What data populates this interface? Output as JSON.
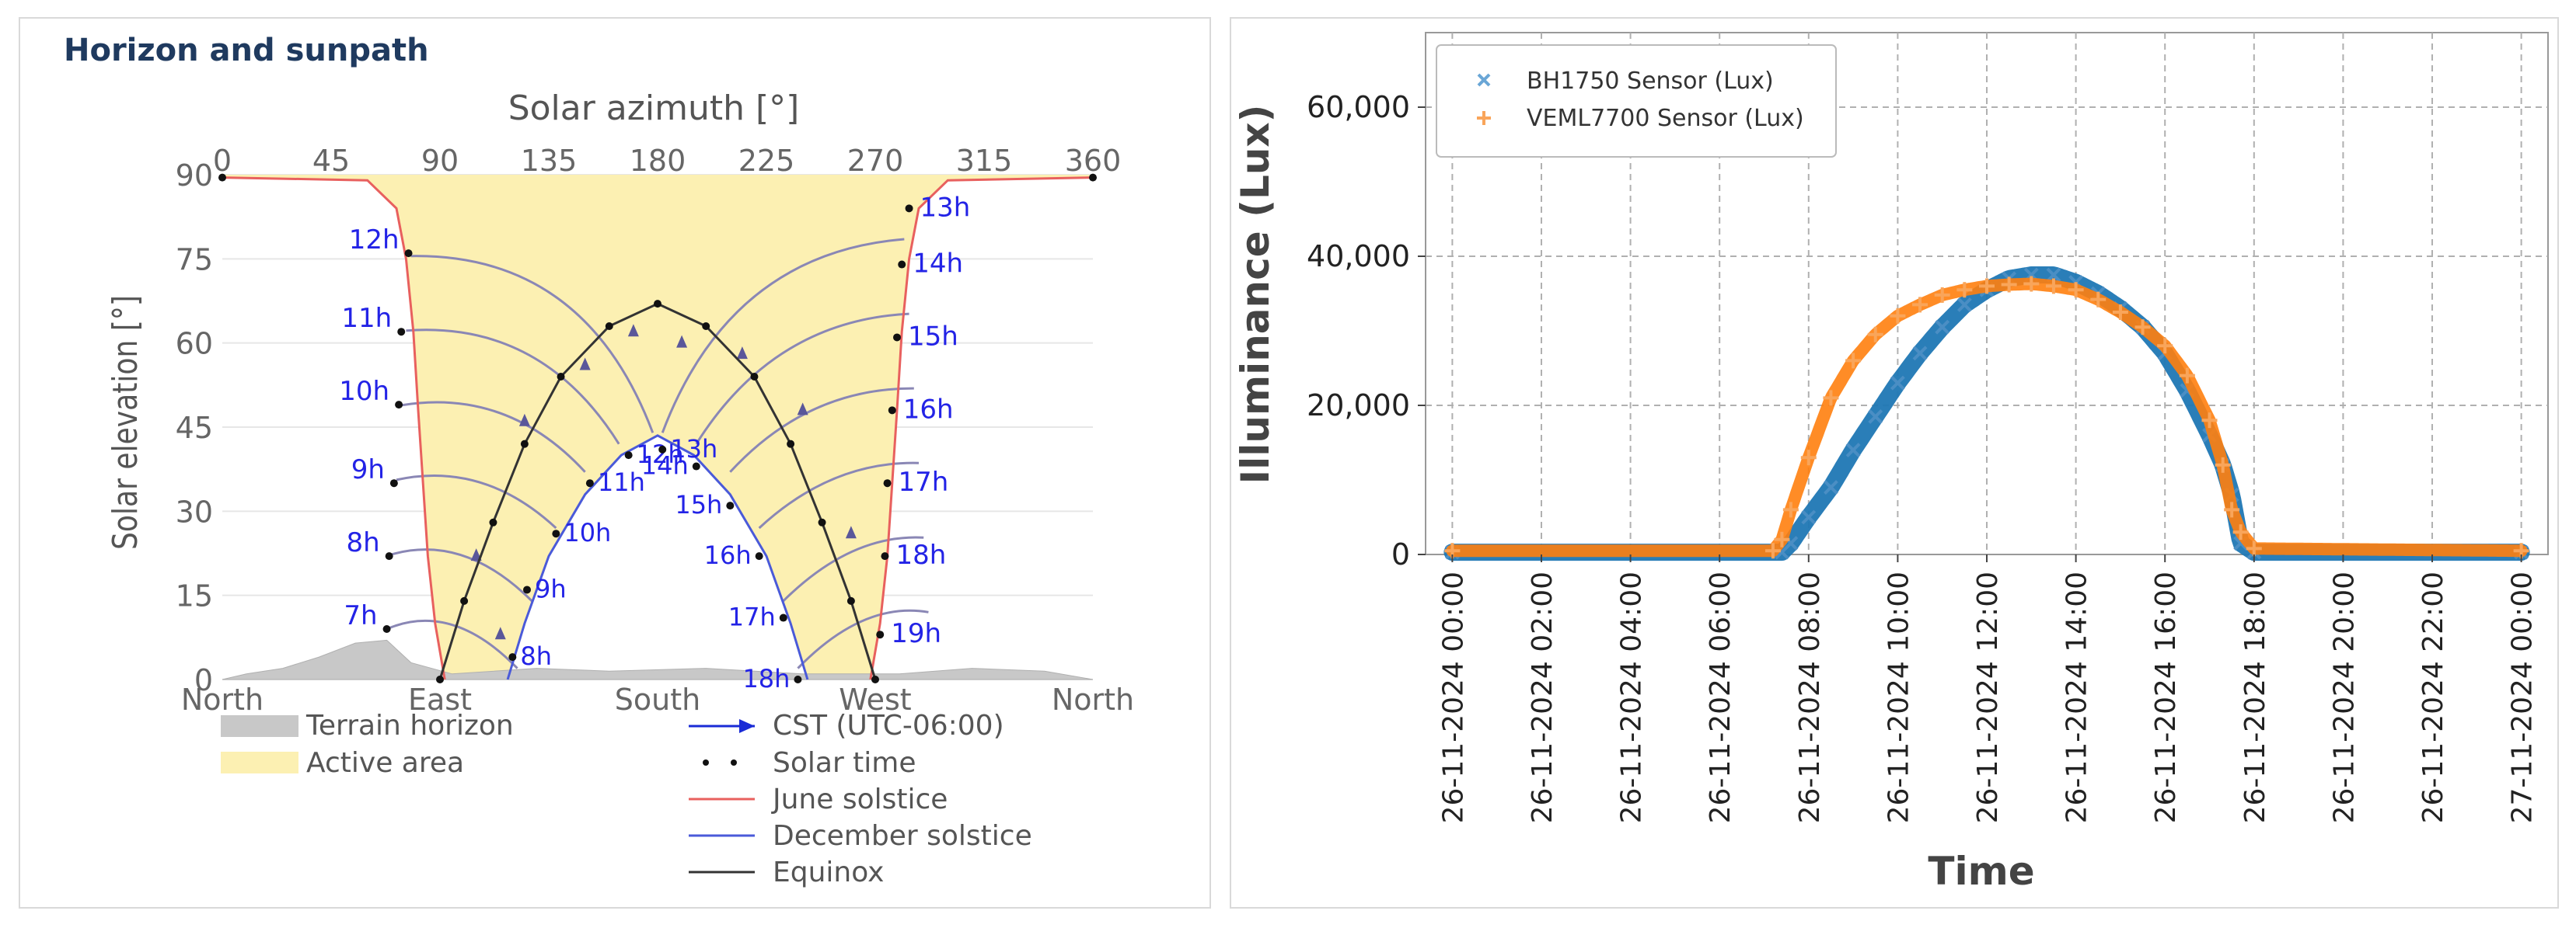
{
  "left": {
    "panel_title": "Horizon and sunpath",
    "chart_data": {
      "type": "line",
      "title": "Horizon and sunpath",
      "xlabel_top": "Solar azimuth [°]",
      "ylabel": "Solar elevation [°]",
      "xlim": [
        0,
        360
      ],
      "ylim": [
        0,
        90
      ],
      "x_ticks": [
        0,
        45,
        90,
        135,
        180,
        225,
        270,
        315,
        360
      ],
      "y_ticks": [
        0,
        15,
        30,
        45,
        60,
        75,
        90
      ],
      "compass_ticks": [
        {
          "azimuth": 0,
          "label": "North"
        },
        {
          "azimuth": 90,
          "label": "East"
        },
        {
          "azimuth": 180,
          "label": "South"
        },
        {
          "azimuth": 270,
          "label": "West"
        },
        {
          "azimuth": 360,
          "label": "North"
        }
      ],
      "legend": [
        {
          "key": "terrain",
          "label": "Terrain horizon"
        },
        {
          "key": "active",
          "label": "Active area"
        },
        {
          "key": "cst",
          "label": "CST (UTC-06:00)"
        },
        {
          "key": "solar_time",
          "label": "Solar time"
        },
        {
          "key": "june",
          "label": "June solstice"
        },
        {
          "key": "december",
          "label": "December solstice"
        },
        {
          "key": "equinox",
          "label": "Equinox"
        }
      ],
      "series": [
        {
          "name": "June solstice",
          "points": [
            [
              0,
              89.5
            ],
            [
              60,
              89
            ],
            [
              72,
              84
            ],
            [
              76,
              75
            ],
            [
              79,
              62
            ],
            [
              81,
              48
            ],
            [
              83,
              35
            ],
            [
              85,
              22
            ],
            [
              88,
              10
            ],
            [
              92,
              0
            ]
          ]
        },
        {
          "name": "June solstice (west)",
          "points": [
            [
              268,
              0
            ],
            [
              272,
              10
            ],
            [
              275,
              22
            ],
            [
              277,
              35
            ],
            [
              279,
              48
            ],
            [
              281,
              62
            ],
            [
              284,
              75
            ],
            [
              288,
              84
            ],
            [
              300,
              89
            ],
            [
              360,
              89.5
            ]
          ]
        },
        {
          "name": "December solstice",
          "points": [
            [
              118,
              0
            ],
            [
              125,
              10
            ],
            [
              135,
              22
            ],
            [
              150,
              33
            ],
            [
              165,
              40
            ],
            [
              180,
              43.5
            ],
            [
              195,
              40
            ],
            [
              210,
              33
            ],
            [
              225,
              22
            ],
            [
              235,
              10
            ],
            [
              242,
              0
            ]
          ]
        },
        {
          "name": "Equinox",
          "points": [
            [
              90,
              0
            ],
            [
              100,
              14
            ],
            [
              112,
              28
            ],
            [
              125,
              42
            ],
            [
              140,
              54
            ],
            [
              160,
              63
            ],
            [
              180,
              67
            ],
            [
              200,
              63
            ],
            [
              220,
              54
            ],
            [
              235,
              42
            ],
            [
              248,
              28
            ],
            [
              260,
              14
            ],
            [
              270,
              0
            ]
          ]
        }
      ],
      "terrain_horizon": [
        [
          0,
          0
        ],
        [
          10,
          1
        ],
        [
          25,
          2
        ],
        [
          40,
          4
        ],
        [
          55,
          6.5
        ],
        [
          68,
          7
        ],
        [
          78,
          3
        ],
        [
          95,
          1
        ],
        [
          130,
          2
        ],
        [
          160,
          1.5
        ],
        [
          200,
          2
        ],
        [
          240,
          1
        ],
        [
          280,
          1
        ],
        [
          310,
          2
        ],
        [
          340,
          1.5
        ],
        [
          360,
          0
        ]
      ],
      "hour_labels_left": [
        {
          "label": "7h",
          "az": 68,
          "el": 9
        },
        {
          "label": "8h",
          "az": 69,
          "el": 22
        },
        {
          "label": "9h",
          "az": 71,
          "el": 35
        },
        {
          "label": "10h",
          "az": 73,
          "el": 49
        },
        {
          "label": "11h",
          "az": 74,
          "el": 62
        },
        {
          "label": "12h",
          "az": 77,
          "el": 76
        }
      ],
      "hour_labels_right": [
        {
          "label": "13h",
          "az": 284,
          "el": 84
        },
        {
          "label": "14h",
          "az": 281,
          "el": 74
        },
        {
          "label": "15h",
          "az": 279,
          "el": 61
        },
        {
          "label": "16h",
          "az": 277,
          "el": 48
        },
        {
          "label": "17h",
          "az": 275,
          "el": 35
        },
        {
          "label": "18h",
          "az": 274,
          "el": 22
        },
        {
          "label": "19h",
          "az": 272,
          "el": 8
        }
      ],
      "hour_labels_december": [
        {
          "label": "8h",
          "az": 120,
          "el": 4
        },
        {
          "label": "9h",
          "az": 126,
          "el": 16
        },
        {
          "label": "10h",
          "az": 138,
          "el": 26
        },
        {
          "label": "11h",
          "az": 152,
          "el": 35
        },
        {
          "label": "12h",
          "az": 168,
          "el": 40
        },
        {
          "label": "13h",
          "az": 182,
          "el": 41
        },
        {
          "label": "14h",
          "az": 196,
          "el": 38
        },
        {
          "label": "15h",
          "az": 210,
          "el": 31
        },
        {
          "label": "16h",
          "az": 222,
          "el": 22
        },
        {
          "label": "17h",
          "az": 232,
          "el": 11
        },
        {
          "label": "18h",
          "az": 238,
          "el": 0
        }
      ]
    }
  },
  "right": {
    "chart_data": {
      "type": "scatter",
      "xlabel": "Time",
      "ylabel": "Illuminance (Lux)",
      "ylim": [
        0,
        70000
      ],
      "xlim_hours": [
        -0.6,
        24.6
      ],
      "y_ticks": [
        0,
        20000,
        40000,
        60000
      ],
      "y_tick_labels": [
        "0",
        "20,000",
        "40,000",
        "60,000"
      ],
      "x_tick_hours": [
        0,
        2,
        4,
        6,
        8,
        10,
        12,
        14,
        16,
        18,
        20,
        22,
        24
      ],
      "x_tick_labels": [
        "26-11-2024 00:00",
        "26-11-2024 02:00",
        "26-11-2024 04:00",
        "26-11-2024 06:00",
        "26-11-2024 08:00",
        "26-11-2024 10:00",
        "26-11-2024 12:00",
        "26-11-2024 14:00",
        "26-11-2024 16:00",
        "26-11-2024 18:00",
        "26-11-2024 20:00",
        "26-11-2024 22:00",
        "27-11-2024 00:00"
      ],
      "grid": true,
      "legend_position": "top-left",
      "series": [
        {
          "name": "BH1750 Sensor (Lux)",
          "marker": "x",
          "color": "#1f77b4",
          "points": [
            [
              0,
              300
            ],
            [
              7.4,
              300
            ],
            [
              7.6,
              1500
            ],
            [
              8.0,
              5000
            ],
            [
              8.5,
              9000
            ],
            [
              9.0,
              14000
            ],
            [
              9.5,
              18500
            ],
            [
              10.0,
              23000
            ],
            [
              10.5,
              27000
            ],
            [
              11.0,
              30500
            ],
            [
              11.5,
              33500
            ],
            [
              12.0,
              35500
            ],
            [
              12.5,
              37000
            ],
            [
              13.0,
              37500
            ],
            [
              13.5,
              37500
            ],
            [
              14.0,
              36500
            ],
            [
              14.5,
              35000
            ],
            [
              15.0,
              33000
            ],
            [
              15.5,
              30500
            ],
            [
              16.0,
              27000
            ],
            [
              16.5,
              22000
            ],
            [
              17.0,
              16000
            ],
            [
              17.3,
              12000
            ],
            [
              17.5,
              8000
            ],
            [
              17.7,
              1500
            ],
            [
              18.0,
              300
            ],
            [
              24,
              300
            ]
          ]
        },
        {
          "name": "VEML7700 Sensor (Lux)",
          "marker": "+",
          "color": "#ff7f0e",
          "points": [
            [
              0,
              500
            ],
            [
              7.2,
              500
            ],
            [
              7.4,
              2000
            ],
            [
              7.6,
              6000
            ],
            [
              8.0,
              13000
            ],
            [
              8.5,
              21000
            ],
            [
              9.0,
              26000
            ],
            [
              9.5,
              29500
            ],
            [
              10.0,
              32000
            ],
            [
              10.5,
              33500
            ],
            [
              11.0,
              34800
            ],
            [
              11.5,
              35500
            ],
            [
              12.0,
              36000
            ],
            [
              12.5,
              36200
            ],
            [
              13.0,
              36300
            ],
            [
              13.5,
              36000
            ],
            [
              14.0,
              35500
            ],
            [
              14.5,
              34200
            ],
            [
              15.0,
              32500
            ],
            [
              15.5,
              30500
            ],
            [
              16.0,
              28000
            ],
            [
              16.5,
              24000
            ],
            [
              17.0,
              18000
            ],
            [
              17.3,
              12000
            ],
            [
              17.5,
              6000
            ],
            [
              17.7,
              3000
            ],
            [
              18.0,
              800
            ],
            [
              24,
              500
            ]
          ]
        }
      ]
    }
  }
}
